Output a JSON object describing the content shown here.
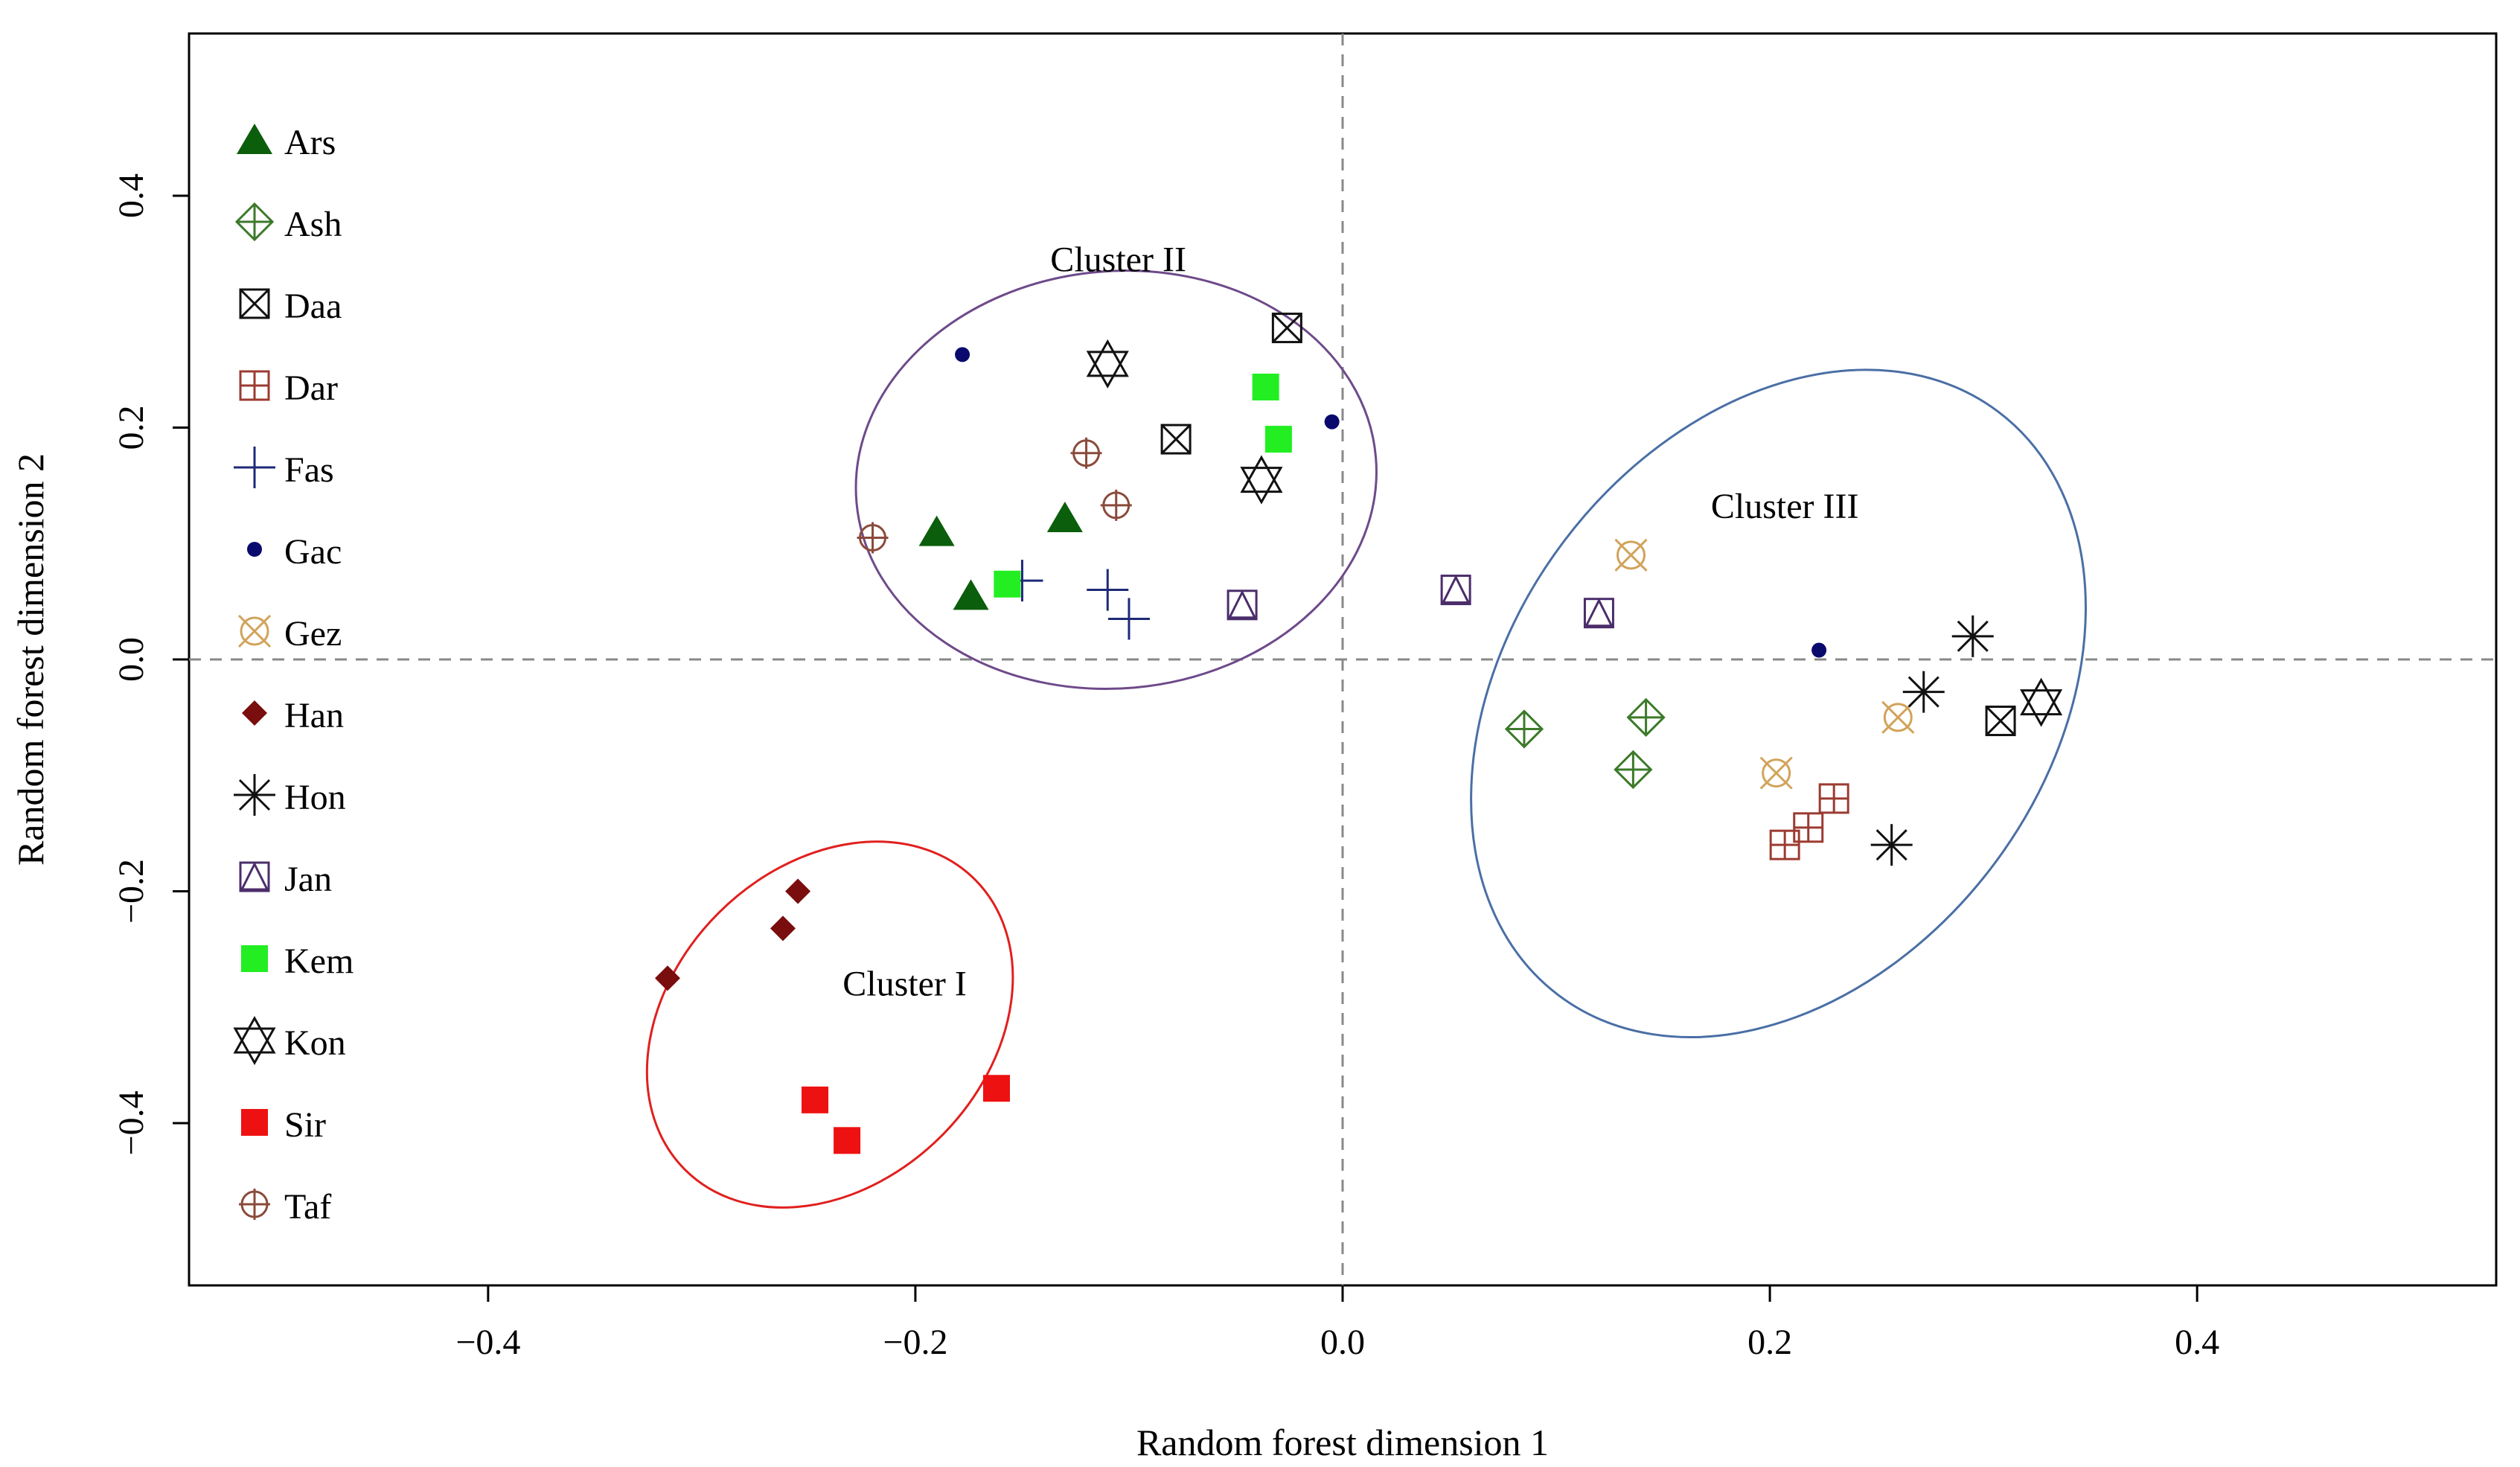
{
  "chart_data": {
    "type": "scatter",
    "title": "",
    "xlabel": "Random forest dimension 1",
    "ylabel": "Random forest dimension 2",
    "xlim": [
      -0.54,
      0.54
    ],
    "ylim": [
      -0.54,
      0.54
    ],
    "xticks": [
      -0.4,
      -0.2,
      0.0,
      0.2,
      0.4
    ],
    "xtick_labels": [
      "−0.4",
      "−0.2",
      "0.0",
      "0.2",
      "0.4"
    ],
    "yticks": [
      -0.4,
      -0.2,
      0.0,
      0.2,
      0.4
    ],
    "ytick_labels": [
      "−0.4",
      "−0.2",
      "0.0",
      "0.2",
      "0.4"
    ],
    "reference_lines": {
      "x": 0.0,
      "y": 0.0,
      "style": "dashed"
    },
    "legend": {
      "position": "left",
      "entries": [
        {
          "name": "Ars",
          "marker": "triangle-filled",
          "color": "#0b5e0b"
        },
        {
          "name": "Ash",
          "marker": "diamond-plus",
          "color": "#3c7a2a"
        },
        {
          "name": "Daa",
          "marker": "square-x",
          "color": "#111111"
        },
        {
          "name": "Dar",
          "marker": "square-plus",
          "color": "#9c3b32"
        },
        {
          "name": "Fas",
          "marker": "plus",
          "color": "#1e2a78"
        },
        {
          "name": "Gac",
          "marker": "dot",
          "color": "#0a0a6e"
        },
        {
          "name": "Gez",
          "marker": "circle-x",
          "color": "#d1a35a"
        },
        {
          "name": "Han",
          "marker": "diamond-filled",
          "color": "#7a0d0d"
        },
        {
          "name": "Hon",
          "marker": "asterisk",
          "color": "#111111"
        },
        {
          "name": "Jan",
          "marker": "square-triangle",
          "color": "#4b2d6b"
        },
        {
          "name": "Kem",
          "marker": "square-filled",
          "color": "#22ee22"
        },
        {
          "name": "Kon",
          "marker": "hexagram",
          "color": "#111111"
        },
        {
          "name": "Sir",
          "marker": "square-filled",
          "color": "#ee1111"
        },
        {
          "name": "Taf",
          "marker": "circle-plus",
          "color": "#8a4a3a"
        }
      ]
    },
    "series": [
      {
        "name": "Ars",
        "points": [
          [
            -0.19,
            0.11
          ],
          [
            -0.174,
            0.055
          ],
          [
            -0.13,
            0.122
          ]
        ]
      },
      {
        "name": "Ash",
        "points": [
          [
            0.085,
            -0.06
          ],
          [
            0.142,
            -0.05
          ],
          [
            0.136,
            -0.095
          ]
        ]
      },
      {
        "name": "Daa",
        "points": [
          [
            -0.026,
            0.286
          ],
          [
            -0.078,
            0.19
          ],
          [
            0.308,
            -0.053
          ]
        ]
      },
      {
        "name": "Dar",
        "points": [
          [
            0.23,
            -0.12
          ],
          [
            0.218,
            -0.145
          ],
          [
            0.207,
            -0.16
          ]
        ]
      },
      {
        "name": "Fas",
        "points": [
          [
            -0.15,
            0.068
          ],
          [
            -0.11,
            0.06
          ],
          [
            -0.1,
            0.035
          ]
        ]
      },
      {
        "name": "Gac",
        "points": [
          [
            -0.178,
            0.263
          ],
          [
            -0.005,
            0.205
          ],
          [
            0.223,
            0.008
          ]
        ]
      },
      {
        "name": "Gez",
        "points": [
          [
            0.135,
            0.09
          ],
          [
            0.26,
            -0.05
          ],
          [
            0.203,
            -0.098
          ]
        ]
      },
      {
        "name": "Han",
        "points": [
          [
            -0.255,
            -0.2
          ],
          [
            -0.262,
            -0.232
          ],
          [
            -0.316,
            -0.275
          ]
        ]
      },
      {
        "name": "Hon",
        "points": [
          [
            0.295,
            0.02
          ],
          [
            0.272,
            -0.028
          ],
          [
            0.257,
            -0.16
          ]
        ]
      },
      {
        "name": "Jan",
        "points": [
          [
            -0.047,
            0.047
          ],
          [
            0.053,
            0.06
          ],
          [
            0.12,
            0.04
          ]
        ]
      },
      {
        "name": "Kem",
        "points": [
          [
            -0.036,
            0.235
          ],
          [
            -0.03,
            0.19
          ],
          [
            -0.157,
            0.065
          ]
        ]
      },
      {
        "name": "Kon",
        "points": [
          [
            -0.11,
            0.255
          ],
          [
            -0.038,
            0.155
          ],
          [
            0.327,
            -0.037
          ]
        ]
      },
      {
        "name": "Sir",
        "points": [
          [
            -0.247,
            -0.38
          ],
          [
            -0.232,
            -0.415
          ],
          [
            -0.162,
            -0.37
          ]
        ]
      },
      {
        "name": "Taf",
        "points": [
          [
            -0.12,
            0.178
          ],
          [
            -0.106,
            0.133
          ],
          [
            -0.22,
            0.105
          ]
        ]
      }
    ],
    "annotations": [
      {
        "text": "Cluster I",
        "x": -0.205,
        "y": -0.29,
        "color": "#e0201e",
        "ellipse": {
          "cx": -0.24,
          "cy": -0.315,
          "rx": 0.096,
          "ry": 0.136,
          "angle_deg": -45
        }
      },
      {
        "text": "Cluster II",
        "x": -0.105,
        "y": 0.335,
        "color": "#6e4a8a",
        "ellipse": {
          "cx": -0.106,
          "cy": 0.155,
          "rx": 0.122,
          "ry": 0.18,
          "angle_deg": -5
        }
      },
      {
        "text": "Cluster III",
        "x": 0.207,
        "y": 0.122,
        "color": "#4a6fa5",
        "ellipse": {
          "cx": 0.204,
          "cy": -0.038,
          "rx": 0.171,
          "ry": 0.232,
          "angle_deg": -53
        }
      }
    ]
  }
}
